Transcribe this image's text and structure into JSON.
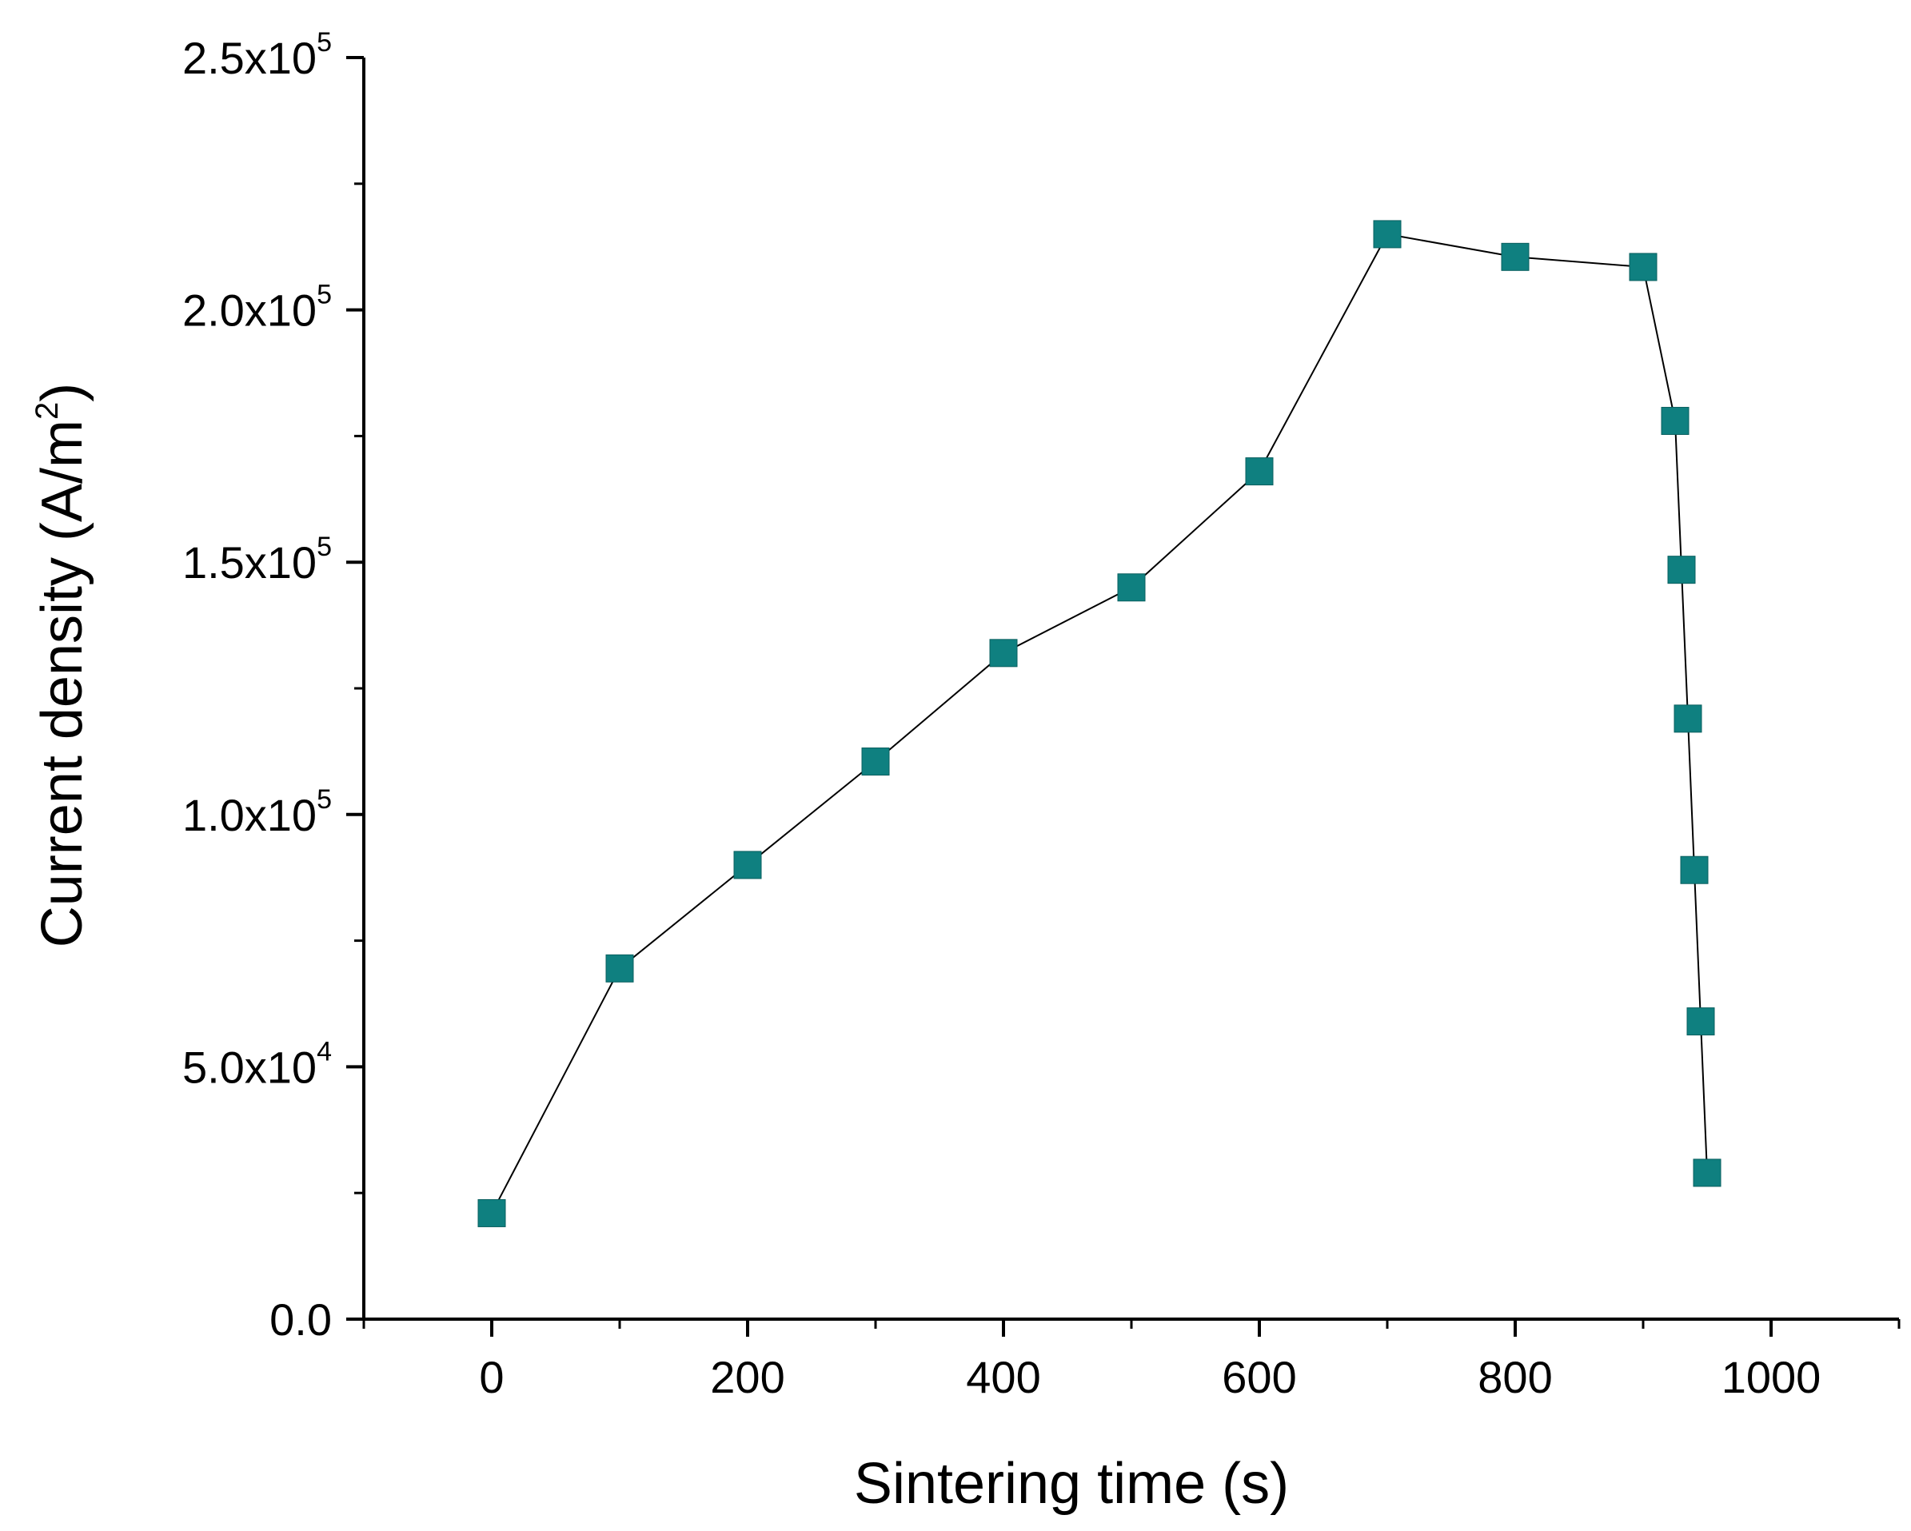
{
  "chart_data": {
    "type": "line",
    "title": "",
    "xlabel": "Sintering time (s)",
    "ylabel": {
      "prefix": "Current density (A/m",
      "sup": "2",
      "suffix": ")"
    },
    "xlim": [
      -100,
      1100
    ],
    "ylim": [
      0,
      250000
    ],
    "x_ticks": [
      0,
      200,
      400,
      600,
      800,
      1000
    ],
    "x_tick_labels": [
      "0",
      "200",
      "400",
      "600",
      "800",
      "1000"
    ],
    "y_ticks": [
      0,
      50000,
      100000,
      150000,
      200000,
      250000
    ],
    "y_tick_labels": [
      {
        "base": "0.0",
        "exp": ""
      },
      {
        "base": "5.0x10",
        "exp": "4"
      },
      {
        "base": "1.0x10",
        "exp": "5"
      },
      {
        "base": "1.5x10",
        "exp": "5"
      },
      {
        "base": "2.0x10",
        "exp": "5"
      },
      {
        "base": "2.5x10",
        "exp": "5"
      }
    ],
    "series": [
      {
        "name": "Current density",
        "color": "#0f8080",
        "marker": "square",
        "x": [
          0,
          100,
          200,
          300,
          400,
          500,
          600,
          700,
          800,
          900,
          925,
          930,
          935,
          940,
          945,
          950
        ],
        "y": [
          21000,
          69500,
          90000,
          110500,
          132000,
          145000,
          168000,
          215000,
          210500,
          208500,
          178000,
          148500,
          119000,
          89000,
          59000,
          29000
        ]
      }
    ]
  }
}
